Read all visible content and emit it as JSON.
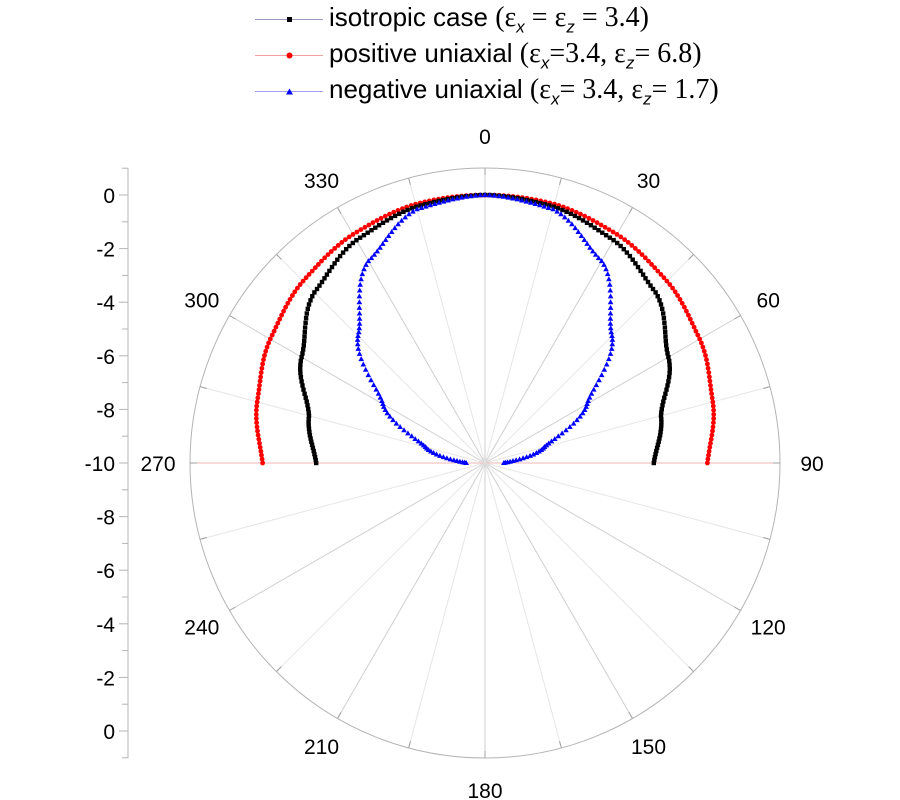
{
  "chart_data": {
    "type": "polar_line",
    "title": "",
    "angular_axis": {
      "direction": "clockwise",
      "zero_location": "top",
      "labels": [
        "0",
        "30",
        "60",
        "90",
        "120",
        "150",
        "180",
        "210",
        "240",
        "270",
        "300",
        "330"
      ],
      "label_angles": [
        0,
        30,
        60,
        90,
        120,
        150,
        180,
        210,
        240,
        270,
        300,
        330
      ],
      "gridline_step_deg": 15
    },
    "radial_axis": {
      "range": [
        -10,
        1
      ],
      "tick_labels_upper": [
        "0",
        "-2",
        "-4",
        "-6",
        "-8",
        "-10"
      ],
      "tick_labels_lower": [
        "-10",
        "-8",
        "-6",
        "-4",
        "-2",
        "0"
      ],
      "ticks": [
        0,
        -2,
        -4,
        -6,
        -8,
        -10
      ],
      "minor_step": 1
    },
    "angles": [
      0,
      15,
      30,
      45,
      60,
      75,
      90,
      270,
      285,
      300,
      315,
      330,
      345
    ],
    "series": [
      {
        "name": "isotropic case",
        "legend_math": "(εx = εz = 3.4)",
        "color": "#000000",
        "marker": "square",
        "values": [
          0,
          -0.1,
          -0.4,
          -1.0,
          -2.1,
          -3.2,
          -3.7,
          -3.7,
          -3.2,
          -2.1,
          -1.0,
          -0.4,
          -0.1
        ]
      },
      {
        "name": "positive uniaxial",
        "legend_math": "(εx=3.4,  εz= 6.8)",
        "color": "#ff0000",
        "marker": "circle",
        "values": [
          0,
          0.0,
          -0.15,
          -0.4,
          -0.75,
          -1.2,
          -1.7,
          -1.7,
          -1.2,
          -0.75,
          -0.4,
          -0.15,
          0.0
        ]
      },
      {
        "name": "negative uniaxial",
        "legend_math": "(εx= 3.4, εz= 1.7)",
        "color": "#0000ff",
        "marker": "triangle",
        "values": [
          0,
          -0.2,
          -1.3,
          -3.3,
          -5.6,
          -7.7,
          -9.3,
          -9.3,
          -7.7,
          -5.6,
          -3.3,
          -1.3,
          -0.2
        ]
      }
    ],
    "legend_position": "top"
  },
  "legend": {
    "items": [
      {
        "label": "isotropic case ",
        "eps_x": "ε",
        "sub_x": "x",
        "mid": " = ",
        "eps_z": "ε",
        "sub_z": "z",
        "tail": " = 3.4)",
        "open": "(",
        "color": "#000000",
        "line_color": "#8c8cc8"
      },
      {
        "label": "positive uniaxial ",
        "eps_x": "ε",
        "sub_x": "x",
        "mid": "=3.4,  ",
        "eps_z": "ε",
        "sub_z": "z",
        "tail": "= 6.8)",
        "open": "(",
        "color": "#ff0000",
        "line_color": "#f2a0a0"
      },
      {
        "label": "negative uniaxial ",
        "eps_x": "ε",
        "sub_x": "x",
        "mid": "= 3.4, ",
        "eps_z": "ε",
        "sub_z": "z",
        "tail": "= 1.7)",
        "open": "(",
        "color": "#0000ff",
        "line_color": "#a0a0f2"
      }
    ]
  }
}
